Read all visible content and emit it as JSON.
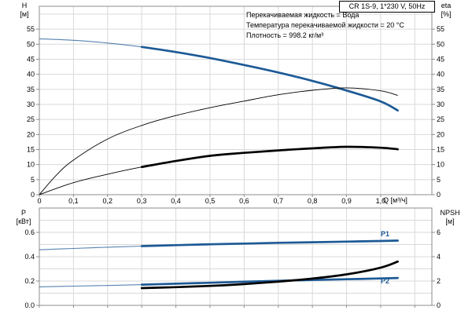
{
  "title_box": "CR 1S-9, 1*230 V, 50Hz",
  "info_lines": [
    "Перекачиваемая жидкость = Вода",
    "Температура перекачиваемой жидкости = 20 °C",
    "Плотность = 998.2 кг/м³"
  ],
  "curve_labels": [
    "P1",
    "P2"
  ],
  "axes": {
    "top_left": {
      "title": "H",
      "unit": "[м]"
    },
    "top_right": {
      "title": "eta",
      "unit": "[%]"
    },
    "bottom_left": {
      "title": "P",
      "unit": "[кВт]"
    },
    "bottom_right": {
      "title": "NPSH",
      "unit": "[м]"
    },
    "x": {
      "title": "Q [м³/ч]"
    }
  },
  "colors": {
    "curve_blue": "#1d5a96",
    "curve_black": "#000000",
    "grid": "#d9d9d9",
    "axis_border": "#8c8c8c",
    "text": "#000000",
    "curve_label_blue": "#1d5a96"
  },
  "chart_data": [
    {
      "type": "line",
      "title": "CR 1S-9, 1*230 V, 50Hz",
      "xlabel": "Q [м³/ч]",
      "ylabel": "H [м]",
      "y2label": "eta [%]",
      "xlim": [
        0,
        1.15
      ],
      "ylim": [
        0,
        62.6
      ],
      "y2lim": [
        0,
        62.6
      ],
      "grid": true,
      "grid_x_step": 0.1,
      "grid_y_step": 5,
      "x_ticks": [
        0,
        0.1,
        0.2,
        0.3,
        0.4,
        0.5,
        0.6,
        0.7,
        0.8,
        0.9,
        1.0
      ],
      "x_tick_labels": [
        "0",
        "0,1",
        "0,2",
        "0,3",
        "0,4",
        "0,5",
        "0,6",
        "0,7",
        "0,8",
        "0,9",
        "1,0"
      ],
      "y_ticks": [
        0,
        5,
        10,
        15,
        20,
        25,
        30,
        35,
        40,
        45,
        50,
        55
      ],
      "y2_ticks": [
        0,
        5,
        10,
        15,
        20,
        25,
        30,
        35,
        40,
        45,
        50,
        55
      ],
      "series": [
        {
          "name": "H",
          "axis": "left",
          "color": "blue",
          "duty_from": 0.3,
          "points": [
            [
              0,
              51.8
            ],
            [
              0.1,
              51.3
            ],
            [
              0.2,
              50.4
            ],
            [
              0.3,
              49.1
            ],
            [
              0.4,
              47.4
            ],
            [
              0.5,
              45.4
            ],
            [
              0.6,
              43.1
            ],
            [
              0.7,
              40.6
            ],
            [
              0.8,
              37.8
            ],
            [
              0.9,
              34.6
            ],
            [
              1.0,
              31.0
            ],
            [
              1.05,
              28.0
            ]
          ]
        },
        {
          "name": "eta",
          "axis": "right",
          "color": "black",
          "points": [
            [
              0,
              0
            ],
            [
              0.05,
              6.5
            ],
            [
              0.1,
              11.5
            ],
            [
              0.2,
              18.5
            ],
            [
              0.3,
              23.0
            ],
            [
              0.4,
              26.3
            ],
            [
              0.5,
              28.9
            ],
            [
              0.6,
              31.1
            ],
            [
              0.7,
              33.2
            ],
            [
              0.8,
              34.7
            ],
            [
              0.9,
              35.5
            ],
            [
              1.0,
              34.5
            ],
            [
              1.05,
              33.0
            ]
          ]
        },
        {
          "name": "eta-pump-motor",
          "axis": "right",
          "color": "black",
          "duty_from": 0.3,
          "points": [
            [
              0,
              0
            ],
            [
              0.1,
              4.0
            ],
            [
              0.2,
              6.8
            ],
            [
              0.3,
              9.2
            ],
            [
              0.4,
              11.2
            ],
            [
              0.5,
              12.9
            ],
            [
              0.6,
              13.9
            ],
            [
              0.7,
              14.7
            ],
            [
              0.8,
              15.4
            ],
            [
              0.9,
              15.9
            ],
            [
              1.0,
              15.6
            ],
            [
              1.05,
              15.1
            ]
          ]
        }
      ]
    },
    {
      "type": "line",
      "ylabel": "P [кВт]",
      "y2label": "NPSH [м]",
      "xlim": [
        0,
        1.15
      ],
      "ylim": [
        0,
        0.8
      ],
      "y2lim": [
        0,
        8
      ],
      "grid": true,
      "grid_x_step": 0.1,
      "grid_y_step": 0.1,
      "y_ticks": [
        0,
        0.2,
        0.4,
        0.6
      ],
      "y_tick_labels": [
        "0.0",
        "0.2",
        "0.4",
        "0.6"
      ],
      "y2_ticks": [
        0,
        2,
        4,
        6
      ],
      "y2_tick_labels": [
        "0",
        "2",
        "4",
        "6"
      ],
      "series": [
        {
          "name": "P1",
          "axis": "left",
          "color": "blue",
          "duty_from": 0.3,
          "points": [
            [
              0,
              0.457
            ],
            [
              0.1,
              0.468
            ],
            [
              0.2,
              0.478
            ],
            [
              0.3,
              0.487
            ],
            [
              0.4,
              0.495
            ],
            [
              0.5,
              0.502
            ],
            [
              0.6,
              0.508
            ],
            [
              0.7,
              0.514
            ],
            [
              0.8,
              0.519
            ],
            [
              0.9,
              0.524
            ],
            [
              1.0,
              0.529
            ],
            [
              1.05,
              0.532
            ]
          ]
        },
        {
          "name": "P2",
          "axis": "left",
          "color": "blue",
          "duty_from": 0.3,
          "points": [
            [
              0,
              0.152
            ],
            [
              0.1,
              0.158
            ],
            [
              0.2,
              0.163
            ],
            [
              0.3,
              0.17
            ],
            [
              0.4,
              0.178
            ],
            [
              0.5,
              0.186
            ],
            [
              0.6,
              0.194
            ],
            [
              0.7,
              0.202
            ],
            [
              0.8,
              0.209
            ],
            [
              0.9,
              0.215
            ],
            [
              1.0,
              0.221
            ],
            [
              1.05,
              0.225
            ]
          ]
        },
        {
          "name": "NPSH",
          "axis": "right",
          "color": "black",
          "duty_from": 0.3,
          "thick_only": true,
          "points": [
            [
              0.3,
              1.42
            ],
            [
              0.4,
              1.5
            ],
            [
              0.5,
              1.6
            ],
            [
              0.6,
              1.75
            ],
            [
              0.7,
              1.95
            ],
            [
              0.8,
              2.2
            ],
            [
              0.9,
              2.55
            ],
            [
              1.0,
              3.1
            ],
            [
              1.05,
              3.6
            ]
          ]
        }
      ]
    }
  ]
}
